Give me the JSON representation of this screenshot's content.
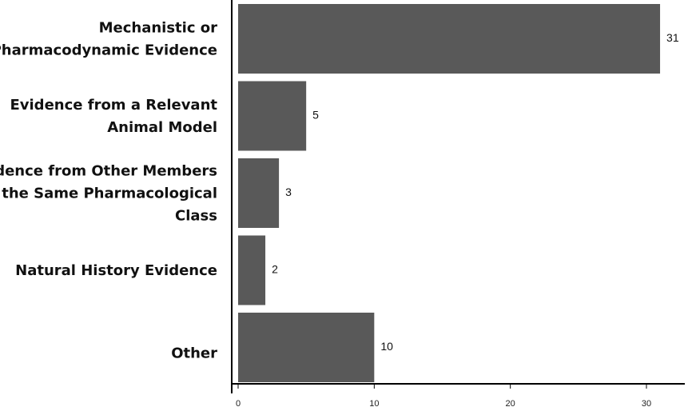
{
  "chart_data": {
    "type": "bar",
    "orientation": "horizontal",
    "categories": [
      [
        "Mechanistic or",
        "Pharmacodynamic Evidence"
      ],
      [
        "Evidence from a Relevant",
        "Animal Model"
      ],
      [
        "Evidence from Other Members",
        "of the Same Pharmacological",
        "Class"
      ],
      [
        "Natural History Evidence"
      ],
      [
        "Other"
      ]
    ],
    "values": [
      31,
      5,
      3,
      2,
      10
    ],
    "value_labels": [
      "31",
      "5",
      "3",
      "2",
      "10"
    ],
    "xlim": [
      0,
      32.7
    ],
    "x_ticks": [
      0,
      10,
      20,
      30
    ],
    "x_tick_labels": [
      "0",
      "10",
      "20",
      "30"
    ],
    "title": "",
    "xlabel": "",
    "ylabel": "",
    "grid": false,
    "legend": "none",
    "bar_color": "#595959",
    "axis_color": "#000000"
  }
}
